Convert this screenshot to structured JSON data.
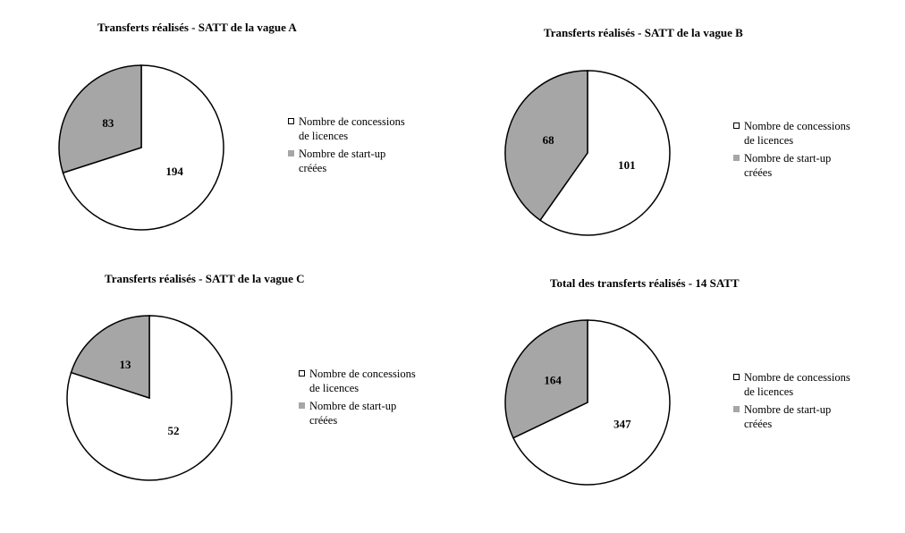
{
  "chart_data": [
    {
      "type": "pie",
      "title": "Transferts réalisés - SATT de la vague A",
      "categories": [
        "Nombre de concessions de licences",
        "Nombre de start-up créées"
      ],
      "values": [
        194,
        83
      ],
      "colors": [
        "#ffffff",
        "#a6a6a6"
      ],
      "legend_position": "right",
      "legend": {
        "item1_line1": "Nombre de concessions",
        "item1_line2": "de licences",
        "item2_line1": "Nombre de start-up",
        "item2_line2": "créées"
      }
    },
    {
      "type": "pie",
      "title": "Transferts réalisés - SATT de la vague B",
      "categories": [
        "Nombre de concessions de licences",
        "Nombre de start-up créées"
      ],
      "values": [
        101,
        68
      ],
      "colors": [
        "#ffffff",
        "#a6a6a6"
      ],
      "legend_position": "right",
      "legend": {
        "item1_line1": "Nombre de concessions",
        "item1_line2": "de licences",
        "item2_line1": "Nombre de start-up",
        "item2_line2": "créées"
      }
    },
    {
      "type": "pie",
      "title": "Transferts réalisés - SATT de la vague C",
      "categories": [
        "Nombre de concessions de licences",
        "Nombre de start-up créées"
      ],
      "values": [
        52,
        13
      ],
      "colors": [
        "#ffffff",
        "#a6a6a6"
      ],
      "legend_position": "right",
      "legend": {
        "item1_line1": "Nombre de concessions",
        "item1_line2": "de licences",
        "item2_line1": "Nombre de start-up",
        "item2_line2": "créées"
      }
    },
    {
      "type": "pie",
      "title": "Total des transferts réalisés - 14 SATT",
      "categories": [
        "Nombre de concessions de licences",
        "Nombre de start-up créées"
      ],
      "values": [
        347,
        164
      ],
      "colors": [
        "#ffffff",
        "#a6a6a6"
      ],
      "legend_position": "right",
      "legend": {
        "item1_line1": "Nombre de concessions",
        "item1_line2": "de licences",
        "item2_line1": "Nombre de start-up",
        "item2_line2": "créées"
      }
    }
  ]
}
